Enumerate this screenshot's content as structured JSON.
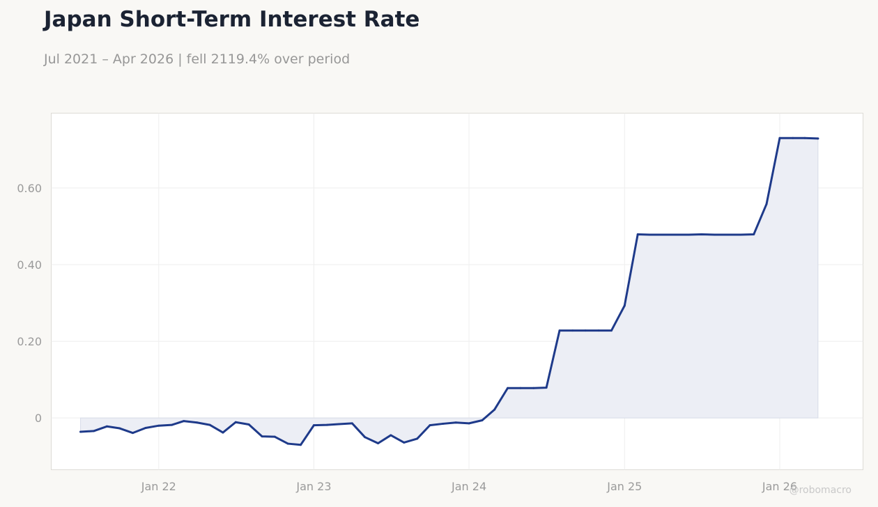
{
  "header": {
    "title": "Japan Short-Term Interest Rate",
    "subtitle": "Jul 2021 – Apr 2026 | fell 2119.4% over period"
  },
  "watermark": "@robomacro",
  "colors": {
    "background": "#f9f8f5",
    "plot_background": "#ffffff",
    "line": "#1e3a8a",
    "fill": "#eceef5",
    "grid": "#eeeeee",
    "title": "#1b2333",
    "subtitle": "#979797"
  },
  "chart_data": {
    "type": "area",
    "title": "Japan Short-Term Interest Rate",
    "subtitle": "Jul 2021 – Apr 2026 | fell 2119.4% over period",
    "xlabel": "",
    "ylabel": "",
    "grid": true,
    "legend": "none",
    "ylim": [
      -0.135,
      0.795
    ],
    "xlim": [
      "2021-04-23",
      "2026-07-16"
    ],
    "yticks": [
      0,
      0.2,
      0.4,
      0.6
    ],
    "ytick_labels": [
      "0",
      "0.20",
      "0.40",
      "0.60"
    ],
    "xticks": [
      "2022-01-01",
      "2023-01-01",
      "2024-01-01",
      "2025-01-01",
      "2026-01-01"
    ],
    "xtick_labels": [
      "Jan 22",
      "Jan 23",
      "Jan 24",
      "Jan 25",
      "Jan 26"
    ],
    "series": [
      {
        "x": [
          "2021-07-01",
          "2021-08-01",
          "2021-09-01",
          "2021-10-01",
          "2021-11-01",
          "2021-12-01",
          "2022-01-01",
          "2022-02-01",
          "2022-03-01",
          "2022-04-01",
          "2022-05-01",
          "2022-06-01",
          "2022-07-01",
          "2022-08-01",
          "2022-09-01",
          "2022-10-01",
          "2022-11-01",
          "2022-12-01",
          "2023-01-01",
          "2023-02-01",
          "2023-03-01",
          "2023-04-01",
          "2023-05-01",
          "2023-06-01",
          "2023-07-01",
          "2023-08-01",
          "2023-09-01",
          "2023-10-01",
          "2023-11-01",
          "2023-12-01",
          "2024-01-01",
          "2024-02-01",
          "2024-03-01",
          "2024-04-01",
          "2024-05-01",
          "2024-06-01",
          "2024-07-01",
          "2024-08-01",
          "2024-09-01",
          "2024-10-01",
          "2024-11-01",
          "2024-12-01",
          "2025-01-01",
          "2025-02-01",
          "2025-03-01",
          "2025-04-01",
          "2025-05-01",
          "2025-06-01",
          "2025-07-01",
          "2025-08-01",
          "2025-09-01",
          "2025-10-01",
          "2025-11-01",
          "2025-12-01",
          "2026-01-01",
          "2026-02-01",
          "2026-03-01",
          "2026-04-01"
        ],
        "values": [
          -0.036,
          -0.034,
          -0.022,
          -0.027,
          -0.039,
          -0.026,
          -0.02,
          -0.018,
          -0.008,
          -0.012,
          -0.018,
          -0.038,
          -0.011,
          -0.017,
          -0.048,
          -0.049,
          -0.067,
          -0.07,
          -0.019,
          -0.018,
          -0.016,
          -0.014,
          -0.05,
          -0.066,
          -0.045,
          -0.064,
          -0.054,
          -0.019,
          -0.015,
          -0.012,
          -0.014,
          -0.006,
          0.022,
          0.078,
          0.078,
          0.078,
          0.079,
          0.228,
          0.228,
          0.228,
          0.228,
          0.228,
          0.293,
          0.479,
          0.478,
          0.478,
          0.478,
          0.478,
          0.479,
          0.478,
          0.478,
          0.478,
          0.479,
          0.558,
          0.73,
          0.73,
          0.73,
          0.729
        ]
      }
    ]
  }
}
